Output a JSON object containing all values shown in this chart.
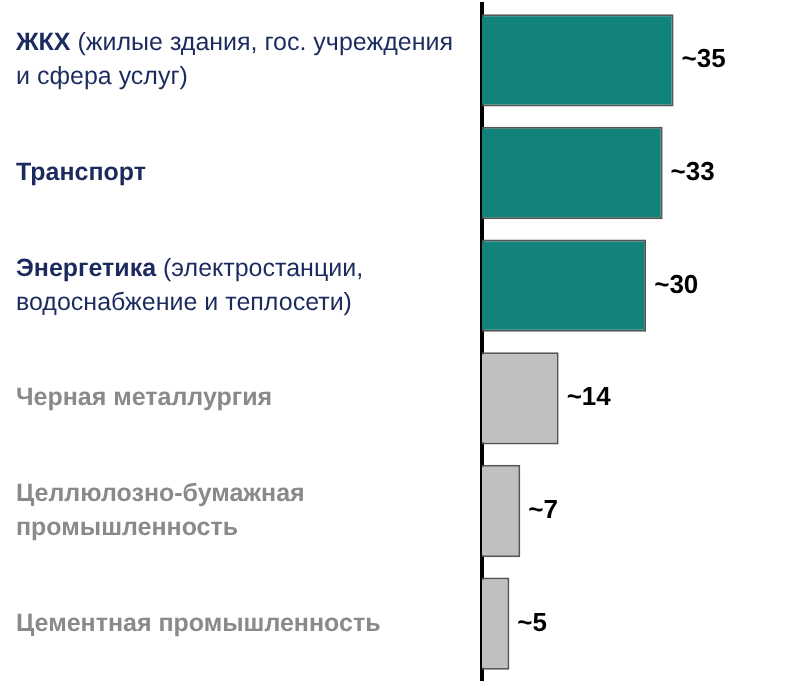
{
  "chart_data": {
    "type": "bar",
    "orientation": "horizontal",
    "categories": [
      "ЖКХ (жилые здания, гос. учреждения и сфера услуг)",
      "Транспорт",
      "Энергетика (электростанции, водоснабжение и теплосети)",
      "Черная металлургия",
      "Целлюлозно-бумажная промышленность",
      "Цементная промышленность"
    ],
    "values": [
      35,
      33,
      30,
      14,
      7,
      5
    ],
    "colors": [
      "#12837a",
      "#12837a",
      "#12837a",
      "#c0c0c0",
      "#c0c0c0",
      "#c0c0c0"
    ],
    "value_labels": [
      "~35",
      "~33",
      "~30",
      "~14",
      "~7",
      "~5"
    ],
    "grid": false,
    "legend": false
  }
}
